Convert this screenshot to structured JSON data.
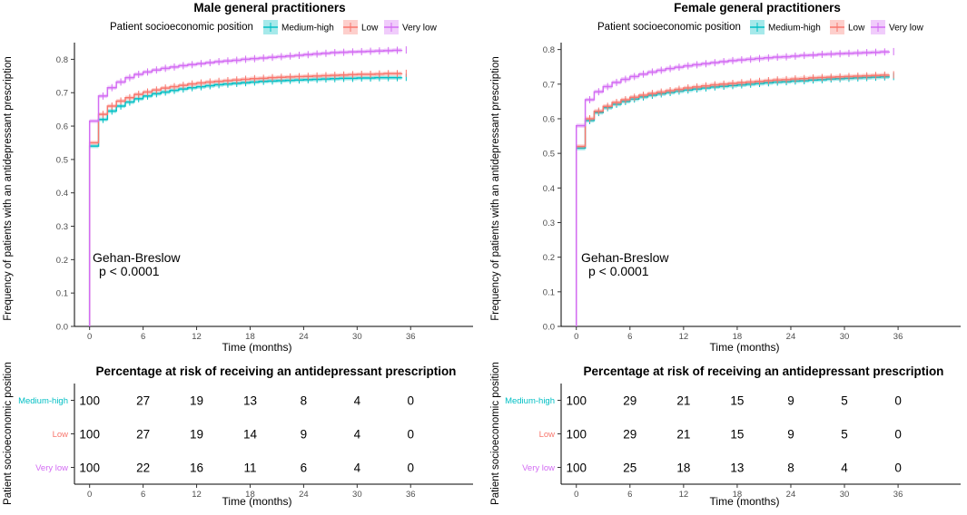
{
  "chart_data": [
    {
      "type": "line",
      "title": "Male general practitioners",
      "legend_title": "Patient socioeconomic position",
      "legend_position": "top",
      "xlabel": "Time (months)",
      "ylabel": "Frequency of patients with an antidepressant prescription",
      "xlim": [
        -1.7,
        43
      ],
      "ylim": [
        0,
        0.85
      ],
      "xticks": [
        0,
        6,
        12,
        18,
        24,
        30,
        36
      ],
      "yticks": [
        0.0,
        0.1,
        0.2,
        0.3,
        0.4,
        0.5,
        0.6,
        0.7,
        0.8
      ],
      "annotation": [
        "Gehan-Breslow",
        "p < 0.0001"
      ],
      "series": [
        {
          "name": "Medium-high",
          "color": "#00BFC4",
          "x": [
            0,
            1,
            2,
            3,
            4,
            5,
            6,
            7,
            8,
            9,
            10,
            11,
            12,
            13,
            14,
            15,
            16,
            17,
            18,
            19,
            20,
            21,
            22,
            23,
            24,
            25,
            26,
            27,
            28,
            29,
            30,
            31,
            32,
            33,
            34,
            35
          ],
          "values": [
            0.54,
            0.62,
            0.645,
            0.66,
            0.672,
            0.682,
            0.69,
            0.697,
            0.702,
            0.707,
            0.711,
            0.715,
            0.718,
            0.721,
            0.724,
            0.726,
            0.728,
            0.73,
            0.732,
            0.734,
            0.735,
            0.736,
            0.737,
            0.738,
            0.739,
            0.74,
            0.741,
            0.742,
            0.743,
            0.743,
            0.744,
            0.744,
            0.745,
            0.745,
            0.745,
            0.746
          ]
        },
        {
          "name": "Low",
          "color": "#F8766D",
          "x": [
            0,
            1,
            2,
            3,
            4,
            5,
            6,
            7,
            8,
            9,
            10,
            11,
            12,
            13,
            14,
            15,
            16,
            17,
            18,
            19,
            20,
            21,
            22,
            23,
            24,
            25,
            26,
            27,
            28,
            29,
            30,
            31,
            32,
            33,
            34,
            35
          ],
          "values": [
            0.55,
            0.635,
            0.66,
            0.675,
            0.685,
            0.695,
            0.702,
            0.708,
            0.714,
            0.718,
            0.722,
            0.726,
            0.729,
            0.732,
            0.734,
            0.736,
            0.738,
            0.74,
            0.742,
            0.743,
            0.745,
            0.746,
            0.747,
            0.748,
            0.749,
            0.75,
            0.751,
            0.752,
            0.753,
            0.754,
            0.755,
            0.755,
            0.756,
            0.757,
            0.757,
            0.758
          ]
        },
        {
          "name": "Very low",
          "color": "#D36CF3",
          "x": [
            0,
            1,
            2,
            3,
            4,
            5,
            6,
            7,
            8,
            9,
            10,
            11,
            12,
            13,
            14,
            15,
            16,
            17,
            18,
            19,
            20,
            21,
            22,
            23,
            24,
            25,
            26,
            27,
            28,
            29,
            30,
            31,
            32,
            33,
            34,
            35
          ],
          "values": [
            0.615,
            0.69,
            0.715,
            0.732,
            0.745,
            0.755,
            0.762,
            0.768,
            0.773,
            0.777,
            0.781,
            0.784,
            0.787,
            0.79,
            0.793,
            0.795,
            0.797,
            0.8,
            0.802,
            0.804,
            0.806,
            0.808,
            0.81,
            0.812,
            0.814,
            0.816,
            0.818,
            0.82,
            0.821,
            0.822,
            0.823,
            0.824,
            0.825,
            0.826,
            0.827,
            0.828
          ]
        }
      ]
    },
    {
      "type": "line",
      "title": "Female general practitioners",
      "legend_title": "Patient socioeconomic position",
      "legend_position": "top",
      "xlabel": "Time (months)",
      "ylabel": "Frequency of patients with an antidepressant prescription",
      "xlim": [
        -1.7,
        43
      ],
      "ylim": [
        0,
        0.82
      ],
      "xticks": [
        0,
        6,
        12,
        18,
        24,
        30,
        36
      ],
      "yticks": [
        0.0,
        0.1,
        0.2,
        0.3,
        0.4,
        0.5,
        0.6,
        0.7,
        0.8
      ],
      "annotation": [
        "Gehan-Breslow",
        "p < 0.0001"
      ],
      "series": [
        {
          "name": "Medium-high",
          "color": "#00BFC4",
          "x": [
            0,
            1,
            2,
            3,
            4,
            5,
            6,
            7,
            8,
            9,
            10,
            11,
            12,
            13,
            14,
            15,
            16,
            17,
            18,
            19,
            20,
            21,
            22,
            23,
            24,
            25,
            26,
            27,
            28,
            29,
            30,
            31,
            32,
            33,
            34,
            35
          ],
          "values": [
            0.515,
            0.595,
            0.618,
            0.632,
            0.642,
            0.65,
            0.657,
            0.663,
            0.668,
            0.672,
            0.676,
            0.68,
            0.683,
            0.686,
            0.689,
            0.692,
            0.694,
            0.696,
            0.698,
            0.7,
            0.702,
            0.704,
            0.706,
            0.707,
            0.709,
            0.71,
            0.712,
            0.713,
            0.715,
            0.716,
            0.717,
            0.718,
            0.719,
            0.72,
            0.721,
            0.722
          ]
        },
        {
          "name": "Low",
          "color": "#F8766D",
          "x": [
            0,
            1,
            2,
            3,
            4,
            5,
            6,
            7,
            8,
            9,
            10,
            11,
            12,
            13,
            14,
            15,
            16,
            17,
            18,
            19,
            20,
            21,
            22,
            23,
            24,
            25,
            26,
            27,
            28,
            29,
            30,
            31,
            32,
            33,
            34,
            35
          ],
          "values": [
            0.52,
            0.6,
            0.622,
            0.636,
            0.647,
            0.655,
            0.662,
            0.668,
            0.673,
            0.677,
            0.681,
            0.685,
            0.689,
            0.692,
            0.695,
            0.698,
            0.7,
            0.702,
            0.704,
            0.706,
            0.708,
            0.71,
            0.712,
            0.713,
            0.715,
            0.716,
            0.718,
            0.719,
            0.72,
            0.721,
            0.722,
            0.723,
            0.724,
            0.725,
            0.726,
            0.727
          ]
        },
        {
          "name": "Very low",
          "color": "#D36CF3",
          "x": [
            0,
            1,
            2,
            3,
            4,
            5,
            6,
            7,
            8,
            9,
            10,
            11,
            12,
            13,
            14,
            15,
            16,
            17,
            18,
            19,
            20,
            21,
            22,
            23,
            24,
            25,
            26,
            27,
            28,
            29,
            30,
            31,
            32,
            33,
            34,
            35
          ],
          "values": [
            0.58,
            0.655,
            0.678,
            0.693,
            0.705,
            0.714,
            0.722,
            0.729,
            0.735,
            0.74,
            0.745,
            0.749,
            0.753,
            0.756,
            0.759,
            0.762,
            0.765,
            0.768,
            0.77,
            0.772,
            0.774,
            0.776,
            0.778,
            0.779,
            0.781,
            0.783,
            0.784,
            0.786,
            0.787,
            0.788,
            0.789,
            0.79,
            0.791,
            0.792,
            0.793,
            0.794
          ]
        }
      ]
    },
    {
      "type": "table",
      "title": "Percentage at risk of receiving an antidepressant prescription",
      "xlabel": "Time (months)",
      "ylabel": "Patient socioeconomic position",
      "xlim": [
        -1.7,
        43
      ],
      "xticks": [
        0,
        6,
        12,
        18,
        24,
        30,
        36
      ],
      "rows": [
        {
          "name": "Medium-high",
          "color": "#00BFC4",
          "values": [
            "100",
            "27",
            "19",
            "13",
            "8",
            "4",
            "0"
          ]
        },
        {
          "name": "Low",
          "color": "#F8766D",
          "values": [
            "100",
            "27",
            "19",
            "14",
            "9",
            "4",
            "0"
          ]
        },
        {
          "name": "Very low",
          "color": "#D36CF3",
          "values": [
            "100",
            "22",
            "16",
            "11",
            "6",
            "4",
            "0"
          ]
        }
      ]
    },
    {
      "type": "table",
      "title": "Percentage at risk of receiving an antidepressant prescription",
      "xlabel": "Time (months)",
      "ylabel": "Patient socioeconomic position",
      "xlim": [
        -1.7,
        43
      ],
      "xticks": [
        0,
        6,
        12,
        18,
        24,
        30,
        36
      ],
      "rows": [
        {
          "name": "Medium-high",
          "color": "#00BFC4",
          "values": [
            "100",
            "29",
            "21",
            "15",
            "9",
            "5",
            "0"
          ]
        },
        {
          "name": "Low",
          "color": "#F8766D",
          "values": [
            "100",
            "29",
            "21",
            "15",
            "9",
            "5",
            "0"
          ]
        },
        {
          "name": "Very low",
          "color": "#D36CF3",
          "values": [
            "100",
            "25",
            "18",
            "13",
            "8",
            "4",
            "0"
          ]
        }
      ]
    }
  ]
}
